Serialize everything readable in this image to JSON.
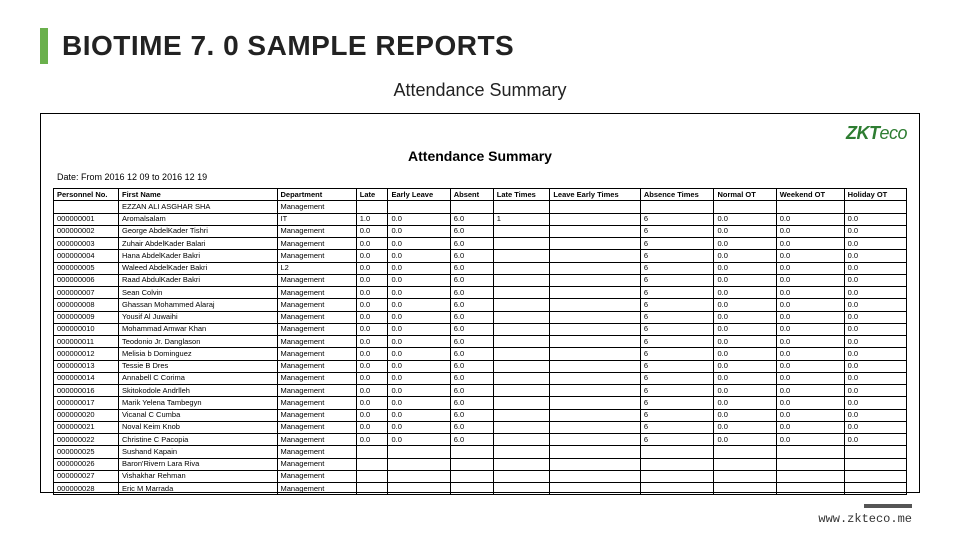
{
  "page": {
    "title": "BIOTIME 7. 0 SAMPLE REPORTS",
    "subtitle": "Attendance Summary",
    "footer_url": "www.zkteco.me",
    "accent_color": "#6ab04c",
    "logo_text_a": "ZKT",
    "logo_text_b": "eco"
  },
  "report": {
    "title": "Attendance Summary",
    "date_range": "Date: From 2016 12 09 to 2016 12 19",
    "columns": [
      "Personnel No.",
      "First Name",
      "Department",
      "Late",
      "Early Leave",
      "Absent",
      "Late Times",
      "Leave Early Times",
      "Absence Times",
      "Normal OT",
      "Weekend OT",
      "Holiday OT"
    ],
    "rows": [
      [
        "",
        "EZZAN ALI ASGHAR SHA",
        "Management",
        "",
        "",
        "",
        "",
        "",
        "",
        "",
        "",
        ""
      ],
      [
        "000000001",
        "Aromalsalam",
        "IT",
        "1.0",
        "0.0",
        "6.0",
        "1",
        "",
        "6",
        "0.0",
        "0.0",
        "0.0"
      ],
      [
        "000000002",
        "George AbdelKader Tishri",
        "Management",
        "0.0",
        "0.0",
        "6.0",
        "",
        "",
        "6",
        "0.0",
        "0.0",
        "0.0"
      ],
      [
        "000000003",
        "Zuhair AbdelKader Balari",
        "Management",
        "0.0",
        "0.0",
        "6.0",
        "",
        "",
        "6",
        "0.0",
        "0.0",
        "0.0"
      ],
      [
        "000000004",
        "Hana AbdelKader Bakri",
        "Management",
        "0.0",
        "0.0",
        "6.0",
        "",
        "",
        "6",
        "0.0",
        "0.0",
        "0.0"
      ],
      [
        "000000005",
        "Waleed AbdelKader Bakri",
        "L2",
        "0.0",
        "0.0",
        "6.0",
        "",
        "",
        "6",
        "0.0",
        "0.0",
        "0.0"
      ],
      [
        "000000006",
        "Raad AbdulKader Bakri",
        "Management",
        "0.0",
        "0.0",
        "6.0",
        "",
        "",
        "6",
        "0.0",
        "0.0",
        "0.0"
      ],
      [
        "000000007",
        "Sean Colvin",
        "Management",
        "0.0",
        "0.0",
        "6.0",
        "",
        "",
        "6",
        "0.0",
        "0.0",
        "0.0"
      ],
      [
        "000000008",
        "Ghassan Mohammed Alaraj",
        "Management",
        "0.0",
        "0.0",
        "6.0",
        "",
        "",
        "6",
        "0.0",
        "0.0",
        "0.0"
      ],
      [
        "000000009",
        "Yousif Al Juwaihi",
        "Management",
        "0.0",
        "0.0",
        "6.0",
        "",
        "",
        "6",
        "0.0",
        "0.0",
        "0.0"
      ],
      [
        "000000010",
        "Mohammad Amwar Khan",
        "Management",
        "0.0",
        "0.0",
        "6.0",
        "",
        "",
        "6",
        "0.0",
        "0.0",
        "0.0"
      ],
      [
        "000000011",
        "Teodonio Jr. Danglason",
        "Management",
        "0.0",
        "0.0",
        "6.0",
        "",
        "",
        "6",
        "0.0",
        "0.0",
        "0.0"
      ],
      [
        "000000012",
        "Melisia b Dominguez",
        "Management",
        "0.0",
        "0.0",
        "6.0",
        "",
        "",
        "6",
        "0.0",
        "0.0",
        "0.0"
      ],
      [
        "000000013",
        "Tessie B Dres",
        "Management",
        "0.0",
        "0.0",
        "6.0",
        "",
        "",
        "6",
        "0.0",
        "0.0",
        "0.0"
      ],
      [
        "000000014",
        "Annabell C Corima",
        "Management",
        "0.0",
        "0.0",
        "6.0",
        "",
        "",
        "6",
        "0.0",
        "0.0",
        "0.0"
      ],
      [
        "000000016",
        "Skitokodole Andrlleh",
        "Management",
        "0.0",
        "0.0",
        "6.0",
        "",
        "",
        "6",
        "0.0",
        "0.0",
        "0.0"
      ],
      [
        "000000017",
        "Marik Yelena Tambegyn",
        "Management",
        "0.0",
        "0.0",
        "6.0",
        "",
        "",
        "6",
        "0.0",
        "0.0",
        "0.0"
      ],
      [
        "000000020",
        "Vicanal C Cumba",
        "Management",
        "0.0",
        "0.0",
        "6.0",
        "",
        "",
        "6",
        "0.0",
        "0.0",
        "0.0"
      ],
      [
        "000000021",
        "Noval Keim Knob",
        "Management",
        "0.0",
        "0.0",
        "6.0",
        "",
        "",
        "6",
        "0.0",
        "0.0",
        "0.0"
      ],
      [
        "000000022",
        "Christine C Pacopia",
        "Management",
        "0.0",
        "0.0",
        "6.0",
        "",
        "",
        "6",
        "0.0",
        "0.0",
        "0.0"
      ],
      [
        "000000025",
        "Sushand Kapain",
        "Management",
        "",
        "",
        "",
        "",
        "",
        "",
        "",
        "",
        ""
      ],
      [
        "000000026",
        "Baron'Rivern Lara Riva",
        "Management",
        "",
        "",
        "",
        "",
        "",
        "",
        "",
        "",
        ""
      ],
      [
        "000000027",
        "Vishakhar Rehman",
        "Management",
        "",
        "",
        "",
        "",
        "",
        "",
        "",
        "",
        ""
      ],
      [
        "000000028",
        "Eric M Marrada",
        "Management",
        "",
        "",
        "",
        "",
        "",
        "",
        "",
        "",
        ""
      ]
    ]
  }
}
